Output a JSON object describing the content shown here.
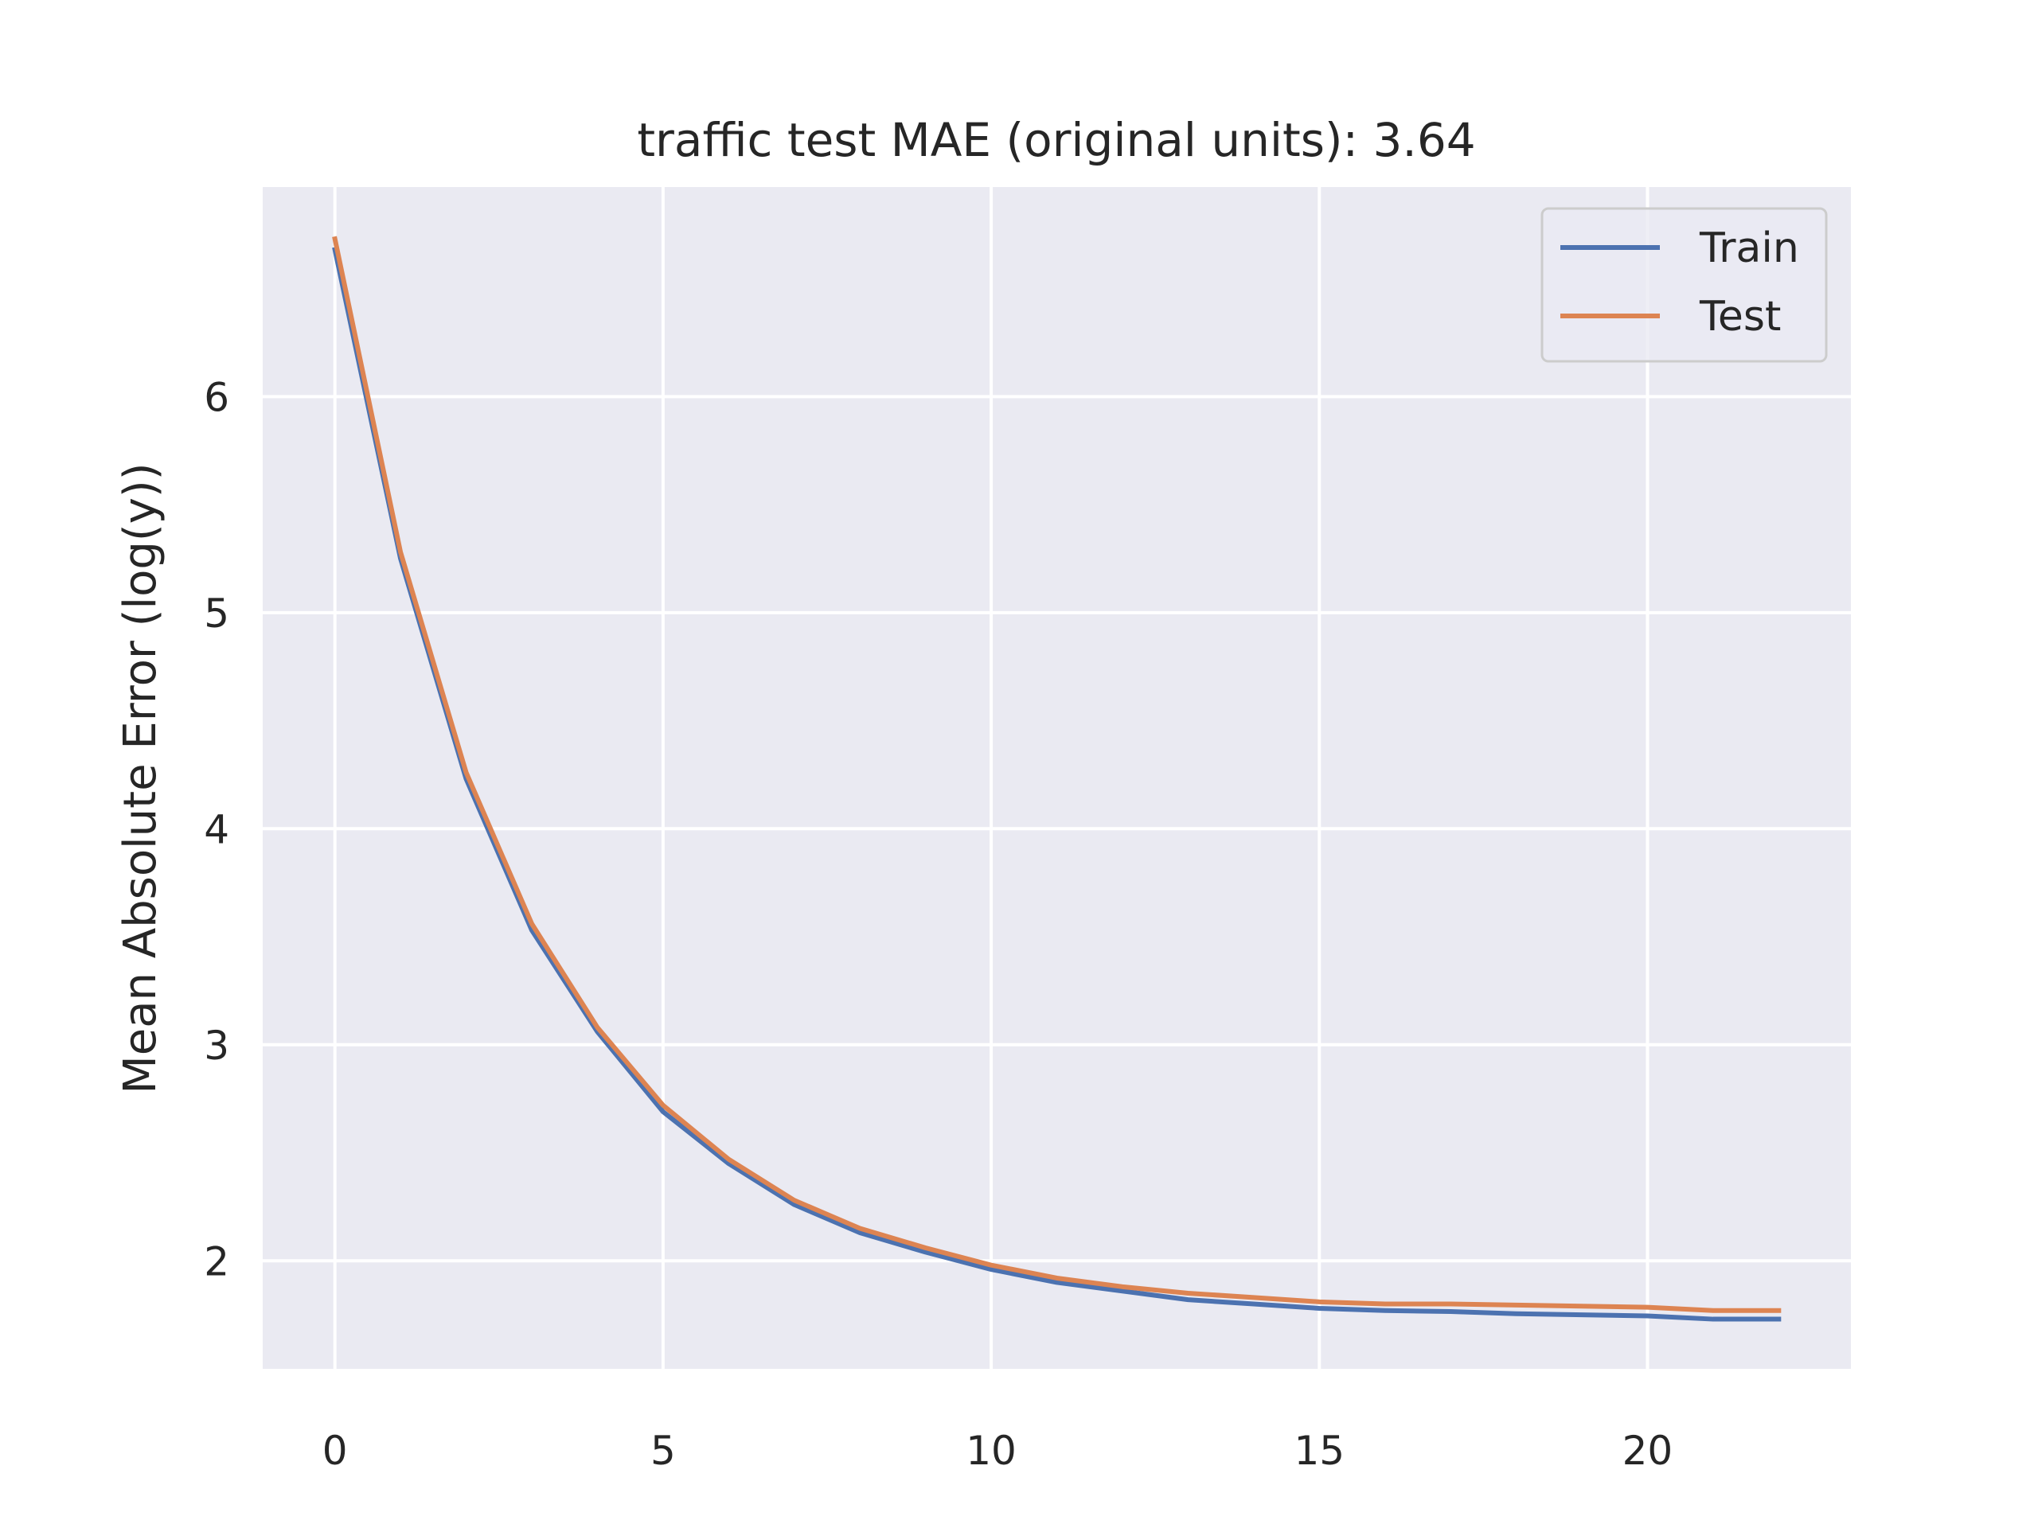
{
  "chart_data": {
    "type": "line",
    "title": "traffic test MAE (original units): 3.64",
    "xlabel": "",
    "ylabel": "Mean Absolute Error (log(y))",
    "xlim": [
      -1.1,
      23.1
    ],
    "ylim": [
      1.5,
      6.97
    ],
    "xticks": [
      0,
      5,
      10,
      15,
      20
    ],
    "yticks": [
      2,
      3,
      4,
      5,
      6
    ],
    "grid": true,
    "legend_position": "top-right",
    "x": [
      0,
      1,
      2,
      3,
      4,
      5,
      6,
      7,
      8,
      9,
      10,
      11,
      12,
      13,
      14,
      15,
      16,
      17,
      18,
      19,
      20,
      21,
      22
    ],
    "series": [
      {
        "name": "Train",
        "color": "#4c72b0",
        "values": [
          6.68,
          5.25,
          4.23,
          3.53,
          3.06,
          2.69,
          2.45,
          2.26,
          2.13,
          2.04,
          1.96,
          1.9,
          1.86,
          1.82,
          1.8,
          1.78,
          1.77,
          1.765,
          1.755,
          1.75,
          1.745,
          1.73,
          1.73
        ]
      },
      {
        "name": "Test",
        "color": "#dd8452",
        "values": [
          6.73,
          5.28,
          4.26,
          3.56,
          3.08,
          2.72,
          2.47,
          2.28,
          2.15,
          2.06,
          1.98,
          1.92,
          1.88,
          1.85,
          1.83,
          1.81,
          1.8,
          1.8,
          1.795,
          1.79,
          1.785,
          1.77,
          1.77
        ]
      }
    ]
  },
  "colors": {
    "plot_background": "#eaeaf2",
    "grid": "#ffffff",
    "text": "#262626"
  }
}
